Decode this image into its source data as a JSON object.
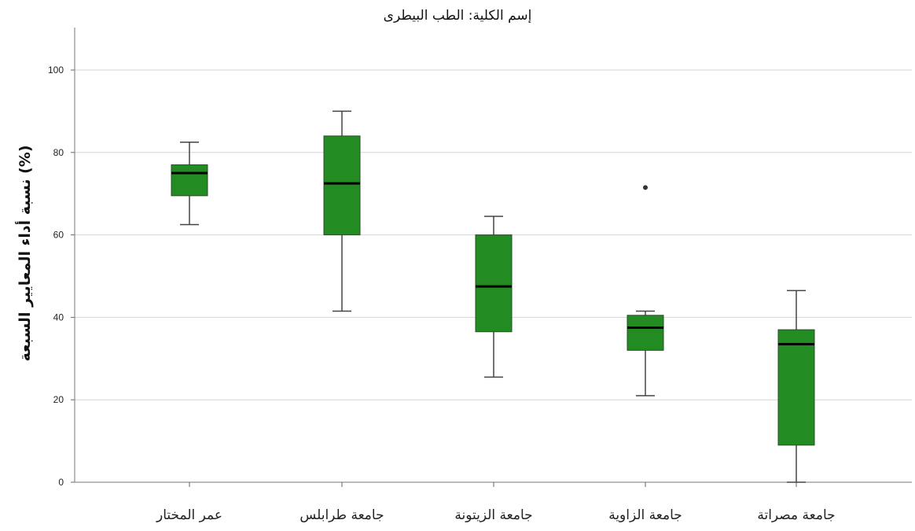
{
  "chart_data": {
    "type": "box",
    "title": "إسم الكلية: الطب البيطرى",
    "xlabel": "",
    "ylabel": "نسبة أداء المعايير السبعة (%)",
    "ylim": [
      0,
      110
    ],
    "yticks": [
      0,
      20,
      40,
      60,
      80,
      100
    ],
    "grid": true,
    "colors": {
      "box_fill": "#228B22",
      "median": "#000000",
      "whisker": "#444444",
      "grid": "#d4d4d4"
    },
    "categories": [
      "عمر المختار",
      "جامعة طرابلس",
      "جامعة الزيتونة",
      "جامعة الزاوية",
      "جامعة مصراتة"
    ],
    "boxes": [
      {
        "category": "عمر المختار",
        "whisker_low": 62.5,
        "q1": 69.5,
        "median": 75,
        "q3": 77,
        "whisker_high": 82.5,
        "outliers": []
      },
      {
        "category": "جامعة طرابلس",
        "whisker_low": 41.5,
        "q1": 60,
        "median": 72.5,
        "q3": 84,
        "whisker_high": 90,
        "outliers": []
      },
      {
        "category": "جامعة الزيتونة",
        "whisker_low": 25.5,
        "q1": 36.5,
        "median": 47.5,
        "q3": 60,
        "whisker_high": 64.5,
        "outliers": []
      },
      {
        "category": "جامعة الزاوية",
        "whisker_low": 21,
        "q1": 32,
        "median": 37.5,
        "q3": 40.5,
        "whisker_high": 41.5,
        "outliers": [
          71.5
        ]
      },
      {
        "category": "جامعة مصراتة",
        "whisker_low": 0,
        "q1": 9,
        "median": 33.5,
        "q3": 37,
        "whisker_high": 46.5,
        "outliers": []
      }
    ]
  }
}
